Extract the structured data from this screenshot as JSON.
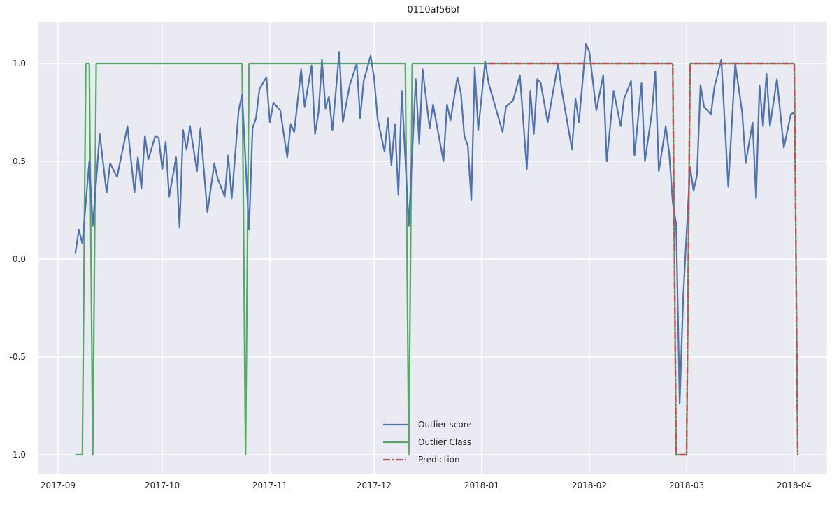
{
  "chart_data": {
    "type": "line",
    "title": "0110af56bf",
    "xlabel": "",
    "ylabel": "",
    "x_type": "date",
    "xlim": [
      "2017-08-27",
      "2018-04-11"
    ],
    "ylim": [
      -1.12,
      1.2
    ],
    "x_ticks": [
      "2017-09",
      "2017-10",
      "2017-11",
      "2017-12",
      "2018-01",
      "2018-02",
      "2018-03",
      "2018-04"
    ],
    "y_ticks": [
      -1.0,
      -0.5,
      0.0,
      0.5,
      1.0
    ],
    "y_tick_labels": [
      "-1.0",
      "-0.5",
      "0.0",
      "0.5",
      "1.0"
    ],
    "grid": true,
    "background": "#eaeaf2",
    "legend_position": "bottom-center",
    "series": [
      {
        "name": "Outlier score",
        "color": "#4c72b0",
        "style": "solid",
        "points": [
          [
            "2017-09-06",
            0.03
          ],
          [
            "2017-09-07",
            0.15
          ],
          [
            "2017-09-08",
            0.08
          ],
          [
            "2017-09-10",
            0.5
          ],
          [
            "2017-09-11",
            0.17
          ],
          [
            "2017-09-13",
            0.64
          ],
          [
            "2017-09-15",
            0.34
          ],
          [
            "2017-09-16",
            0.49
          ],
          [
            "2017-09-18",
            0.42
          ],
          [
            "2017-09-21",
            0.68
          ],
          [
            "2017-09-23",
            0.34
          ],
          [
            "2017-09-24",
            0.52
          ],
          [
            "2017-09-25",
            0.36
          ],
          [
            "2017-09-26",
            0.63
          ],
          [
            "2017-09-27",
            0.51
          ],
          [
            "2017-09-29",
            0.63
          ],
          [
            "2017-09-30",
            0.62
          ],
          [
            "2017-10-01",
            0.46
          ],
          [
            "2017-10-02",
            0.6
          ],
          [
            "2017-10-03",
            0.32
          ],
          [
            "2017-10-05",
            0.52
          ],
          [
            "2017-10-06",
            0.16
          ],
          [
            "2017-10-07",
            0.66
          ],
          [
            "2017-10-08",
            0.56
          ],
          [
            "2017-10-09",
            0.68
          ],
          [
            "2017-10-11",
            0.45
          ],
          [
            "2017-10-12",
            0.67
          ],
          [
            "2017-10-14",
            0.24
          ],
          [
            "2017-10-16",
            0.49
          ],
          [
            "2017-10-17",
            0.41
          ],
          [
            "2017-10-19",
            0.32
          ],
          [
            "2017-10-20",
            0.53
          ],
          [
            "2017-10-21",
            0.31
          ],
          [
            "2017-10-23",
            0.76
          ],
          [
            "2017-10-24",
            0.84
          ],
          [
            "2017-10-26",
            0.15
          ],
          [
            "2017-10-27",
            0.67
          ],
          [
            "2017-10-28",
            0.72
          ],
          [
            "2017-10-29",
            0.87
          ],
          [
            "2017-10-31",
            0.93
          ],
          [
            "2017-11-01",
            0.7
          ],
          [
            "2017-11-02",
            0.8
          ],
          [
            "2017-11-04",
            0.76
          ],
          [
            "2017-11-06",
            0.52
          ],
          [
            "2017-11-07",
            0.69
          ],
          [
            "2017-11-08",
            0.65
          ],
          [
            "2017-11-10",
            0.97
          ],
          [
            "2017-11-11",
            0.78
          ],
          [
            "2017-11-13",
            0.99
          ],
          [
            "2017-11-14",
            0.64
          ],
          [
            "2017-11-15",
            0.75
          ],
          [
            "2017-11-16",
            1.02
          ],
          [
            "2017-11-17",
            0.77
          ],
          [
            "2017-11-18",
            0.83
          ],
          [
            "2017-11-19",
            0.66
          ],
          [
            "2017-11-21",
            1.06
          ],
          [
            "2017-11-22",
            0.7
          ],
          [
            "2017-11-24",
            0.89
          ],
          [
            "2017-11-26",
            1.0
          ],
          [
            "2017-11-27",
            0.72
          ],
          [
            "2017-11-28",
            0.91
          ],
          [
            "2017-11-30",
            1.04
          ],
          [
            "2017-12-01",
            0.93
          ],
          [
            "2017-12-02",
            0.72
          ],
          [
            "2017-12-04",
            0.55
          ],
          [
            "2017-12-05",
            0.72
          ],
          [
            "2017-12-06",
            0.48
          ],
          [
            "2017-12-07",
            0.69
          ],
          [
            "2017-12-08",
            0.33
          ],
          [
            "2017-12-09",
            0.86
          ],
          [
            "2017-12-11",
            0.17
          ],
          [
            "2017-12-13",
            0.92
          ],
          [
            "2017-12-14",
            0.59
          ],
          [
            "2017-12-15",
            0.97
          ],
          [
            "2017-12-17",
            0.67
          ],
          [
            "2017-12-18",
            0.79
          ],
          [
            "2017-12-21",
            0.5
          ],
          [
            "2017-12-22",
            0.79
          ],
          [
            "2017-12-23",
            0.71
          ],
          [
            "2017-12-25",
            0.93
          ],
          [
            "2017-12-26",
            0.85
          ],
          [
            "2017-12-27",
            0.63
          ],
          [
            "2017-12-28",
            0.58
          ],
          [
            "2017-12-29",
            0.3
          ],
          [
            "2017-12-30",
            0.98
          ],
          [
            "2017-12-31",
            0.66
          ],
          [
            "2018-01-02",
            1.01
          ],
          [
            "2018-01-03",
            0.9
          ],
          [
            "2018-01-07",
            0.65
          ],
          [
            "2018-01-08",
            0.78
          ],
          [
            "2018-01-10",
            0.81
          ],
          [
            "2018-01-12",
            0.94
          ],
          [
            "2018-01-14",
            0.46
          ],
          [
            "2018-01-15",
            0.86
          ],
          [
            "2018-01-16",
            0.64
          ],
          [
            "2018-01-17",
            0.92
          ],
          [
            "2018-01-18",
            0.9
          ],
          [
            "2018-01-20",
            0.7
          ],
          [
            "2018-01-23",
            1.0
          ],
          [
            "2018-01-24",
            0.87
          ],
          [
            "2018-01-27",
            0.56
          ],
          [
            "2018-01-28",
            0.82
          ],
          [
            "2018-01-29",
            0.7
          ],
          [
            "2018-01-31",
            1.1
          ],
          [
            "2018-02-01",
            1.06
          ],
          [
            "2018-02-03",
            0.76
          ],
          [
            "2018-02-05",
            0.94
          ],
          [
            "2018-02-06",
            0.5
          ],
          [
            "2018-02-08",
            0.86
          ],
          [
            "2018-02-10",
            0.68
          ],
          [
            "2018-02-11",
            0.82
          ],
          [
            "2018-02-13",
            0.91
          ],
          [
            "2018-02-14",
            0.53
          ],
          [
            "2018-02-16",
            0.9
          ],
          [
            "2018-02-17",
            0.5
          ],
          [
            "2018-02-19",
            0.75
          ],
          [
            "2018-02-20",
            0.96
          ],
          [
            "2018-02-21",
            0.45
          ],
          [
            "2018-02-23",
            0.68
          ],
          [
            "2018-02-24",
            0.54
          ],
          [
            "2018-02-25",
            0.29
          ],
          [
            "2018-02-26",
            0.18
          ],
          [
            "2018-02-27",
            -0.74
          ],
          [
            "2018-02-28",
            -0.2
          ],
          [
            "2018-03-02",
            0.47
          ],
          [
            "2018-03-03",
            0.35
          ],
          [
            "2018-03-04",
            0.43
          ],
          [
            "2018-03-05",
            0.89
          ],
          [
            "2018-03-06",
            0.78
          ],
          [
            "2018-03-08",
            0.74
          ],
          [
            "2018-03-09",
            0.88
          ],
          [
            "2018-03-11",
            1.02
          ],
          [
            "2018-03-13",
            0.37
          ],
          [
            "2018-03-15",
            1.0
          ],
          [
            "2018-03-17",
            0.75
          ],
          [
            "2018-03-18",
            0.49
          ],
          [
            "2018-03-20",
            0.7
          ],
          [
            "2018-03-21",
            0.31
          ],
          [
            "2018-03-22",
            0.89
          ],
          [
            "2018-03-23",
            0.68
          ],
          [
            "2018-03-24",
            0.95
          ],
          [
            "2018-03-25",
            0.68
          ],
          [
            "2018-03-27",
            0.92
          ],
          [
            "2018-03-29",
            0.57
          ],
          [
            "2018-03-31",
            0.74
          ],
          [
            "2018-04-01",
            0.75
          ]
        ]
      },
      {
        "name": "Outlier Class",
        "color": "#55a868",
        "style": "solid",
        "points": [
          [
            "2017-09-06",
            -1
          ],
          [
            "2017-09-08",
            -1
          ],
          [
            "2017-09-09",
            1
          ],
          [
            "2017-09-10",
            1
          ],
          [
            "2017-09-11",
            -1
          ],
          [
            "2017-09-12",
            1
          ],
          [
            "2017-10-24",
            1
          ],
          [
            "2017-10-25",
            -1
          ],
          [
            "2017-10-26",
            1
          ],
          [
            "2017-12-10",
            1
          ],
          [
            "2017-12-11",
            -1
          ],
          [
            "2017-12-12",
            1
          ],
          [
            "2018-02-25",
            1
          ],
          [
            "2018-02-26",
            -1
          ],
          [
            "2018-03-01",
            -1
          ],
          [
            "2018-03-02",
            1
          ],
          [
            "2018-04-01",
            1
          ],
          [
            "2018-04-02",
            -1
          ]
        ]
      },
      {
        "name": "Prediction",
        "color": "#c44e52",
        "style": "dashdot",
        "points": [
          [
            "2018-01-03",
            1
          ],
          [
            "2018-02-25",
            1
          ],
          [
            "2018-02-26",
            -1
          ],
          [
            "2018-03-01",
            -1
          ],
          [
            "2018-03-02",
            1
          ],
          [
            "2018-04-01",
            1
          ],
          [
            "2018-04-02",
            -1
          ]
        ]
      }
    ]
  }
}
